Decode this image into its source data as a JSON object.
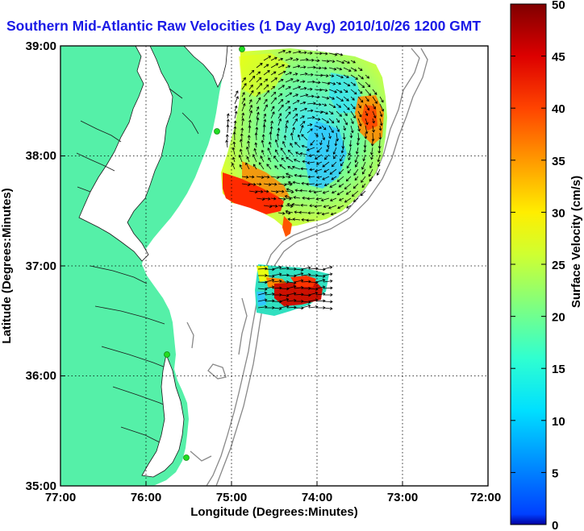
{
  "title": "Southern Mid-Atlantic Raw Velocities (1 Day Avg) 2010/10/26 1200 GMT",
  "xlabel": "Longitude (Degrees:Minutes)",
  "ylabel": "Latitude (Degrees:Minutes)",
  "x_ticks": [
    "77:00",
    "76:00",
    "75:00",
    "74:00",
    "73:00",
    "72:00"
  ],
  "y_ticks": [
    "39:00",
    "38:00",
    "37:00",
    "36:00",
    "35:00"
  ],
  "colorbar": {
    "label": "Surface Velocity (cm/s)",
    "ticks": [
      "0",
      "5",
      "10",
      "15",
      "20",
      "25",
      "30",
      "35",
      "40",
      "45",
      "50"
    ],
    "range": [
      0,
      50
    ],
    "colormap": "jet"
  },
  "colors": {
    "land": "#55f0a8",
    "title": "#1a1ae6",
    "isobath": "#888888",
    "station": "#22dd22"
  },
  "map": {
    "lon_range": [
      -77,
      -72
    ],
    "lat_range": [
      35,
      39
    ],
    "grid": "dotted"
  }
}
